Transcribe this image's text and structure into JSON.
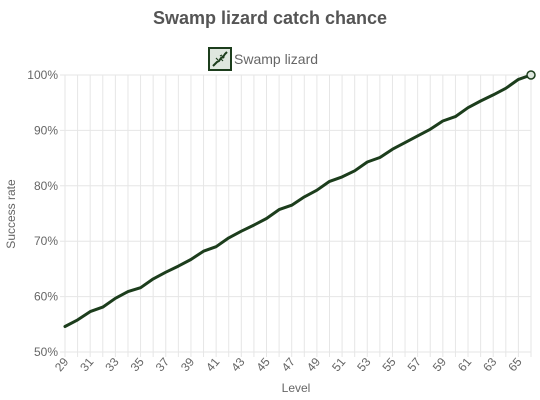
{
  "chart_data": {
    "type": "line",
    "title": "Swamp lizard catch chance",
    "xlabel": "Level",
    "ylabel": "Success rate",
    "xlim": [
      29,
      66
    ],
    "ylim": [
      50,
      100
    ],
    "x_ticks": [
      "29",
      "31",
      "33",
      "35",
      "37",
      "39",
      "41",
      "43",
      "45",
      "47",
      "49",
      "51",
      "53",
      "55",
      "57",
      "59",
      "61",
      "63",
      "65"
    ],
    "y_ticks": [
      "50%",
      "60%",
      "70%",
      "80%",
      "90%",
      "100%"
    ],
    "y_tick_values": [
      50,
      60,
      70,
      80,
      90,
      100
    ],
    "grid": true,
    "legend_position": "top-center",
    "series": [
      {
        "name": "Swamp lizard",
        "color": "#1c3d1c",
        "icon": "swamp-lizard-icon",
        "x": [
          29,
          30,
          31,
          32,
          33,
          34,
          35,
          36,
          37,
          38,
          39,
          40,
          41,
          42,
          43,
          44,
          45,
          46,
          47,
          48,
          49,
          50,
          51,
          52,
          53,
          54,
          55,
          56,
          57,
          58,
          59,
          60,
          61,
          62,
          63,
          64,
          65,
          66
        ],
        "values": [
          54.6,
          55.8,
          57.3,
          58.1,
          59.7,
          60.9,
          61.6,
          63.2,
          64.4,
          65.5,
          66.7,
          68.2,
          69.0,
          70.6,
          71.8,
          72.9,
          74.1,
          75.7,
          76.5,
          78.0,
          79.2,
          80.8,
          81.6,
          82.7,
          84.3,
          85.1,
          86.6,
          87.8,
          89.0,
          90.2,
          91.7,
          92.5,
          94.1,
          95.3,
          96.4,
          97.6,
          99.2,
          100.0
        ]
      }
    ]
  }
}
